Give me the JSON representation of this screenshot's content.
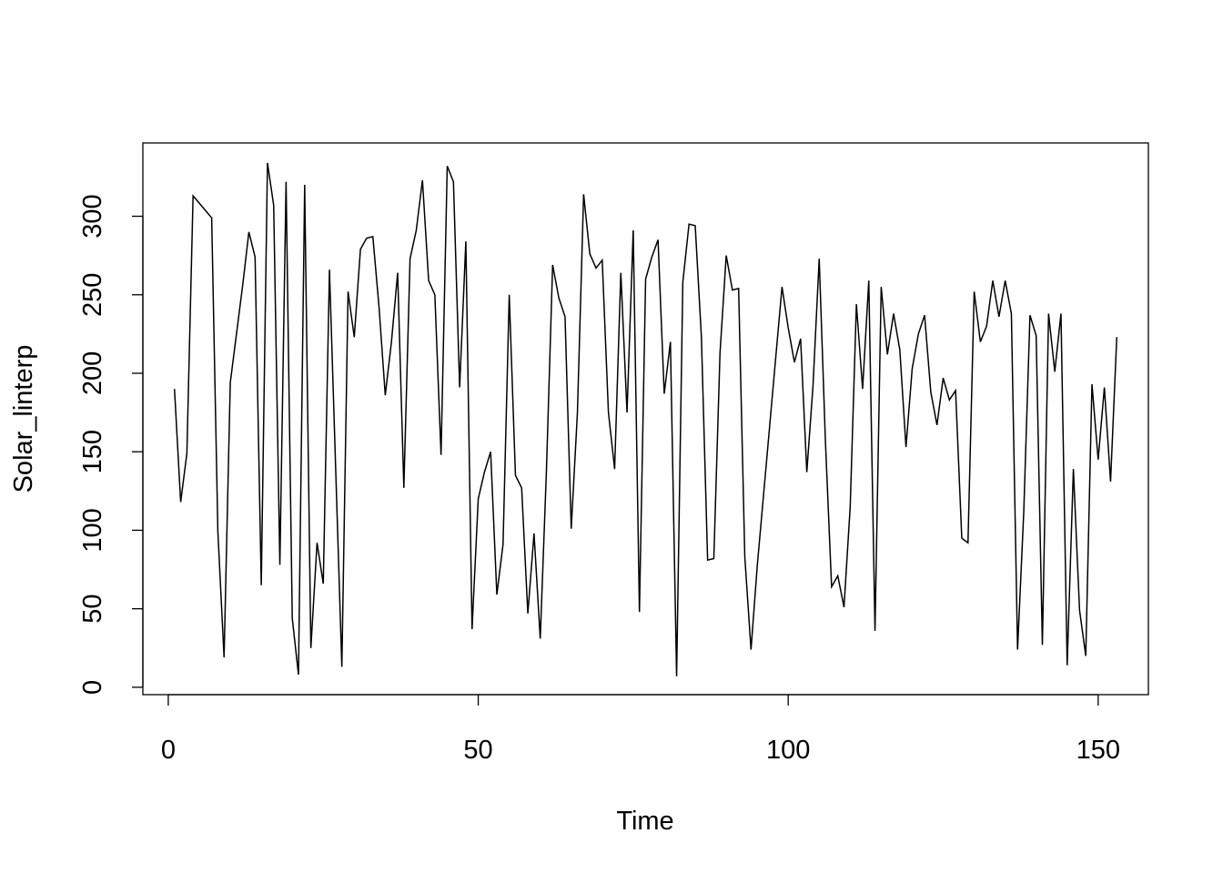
{
  "chart_data": {
    "type": "line",
    "title": "",
    "xlabel": "Time",
    "ylabel": "Solar_linterp",
    "xlim": [
      -4.1,
      158.1
    ],
    "ylim": [
      -4.7,
      346.7
    ],
    "xticks": [
      0,
      50,
      100,
      150
    ],
    "yticks": [
      0,
      50,
      100,
      150,
      200,
      250,
      300
    ],
    "grid": false,
    "line_color": "#000000",
    "x_start": 1,
    "values": [
      190,
      118,
      149,
      313,
      308.33,
      303.67,
      299,
      99,
      19,
      194,
      225,
      256,
      290,
      274,
      65,
      334,
      307,
      78,
      322,
      44,
      8,
      320,
      25,
      92,
      66,
      266,
      139.5,
      13,
      252,
      223,
      279,
      286,
      287,
      242,
      186,
      220,
      264,
      127,
      273,
      291,
      323,
      259,
      250,
      148,
      332,
      322,
      191,
      284,
      37,
      120,
      137,
      150,
      59,
      91,
      250,
      135,
      127,
      47,
      98,
      31,
      138,
      269,
      248,
      236,
      101,
      175,
      314,
      276,
      267,
      272,
      175,
      139,
      264,
      175,
      291,
      48,
      260,
      274,
      285,
      187,
      220,
      7,
      258,
      295,
      294,
      223,
      81,
      82,
      213,
      275,
      253,
      254,
      83,
      24,
      77,
      121.5,
      166,
      210.5,
      255,
      229,
      207,
      222,
      137,
      192,
      273,
      157,
      64,
      71,
      51,
      115,
      244,
      190,
      259,
      36,
      255,
      212,
      238,
      215,
      153,
      203,
      225,
      237,
      188,
      167,
      197,
      183,
      189,
      95,
      92,
      252,
      220,
      230,
      259,
      236,
      259,
      238,
      24,
      112,
      237,
      224,
      27,
      238,
      201,
      238,
      14,
      139,
      49,
      20,
      193,
      145,
      191,
      131,
      223
    ]
  }
}
